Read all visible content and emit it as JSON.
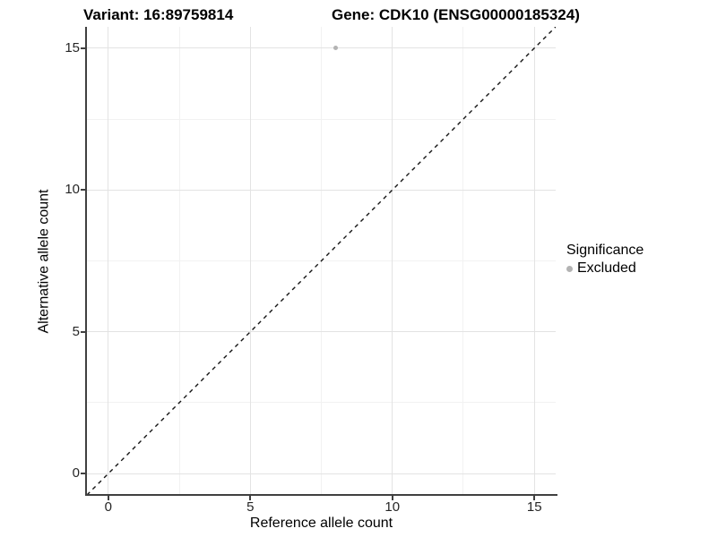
{
  "chart_data": {
    "type": "scatter",
    "title_left": "Variant: 16:89759814",
    "title_right": "Gene: CDK10 (ENSG00000185324)",
    "xlabel": "Reference allele count",
    "ylabel": "Alternative allele count",
    "xlim": [
      -0.75,
      15.75
    ],
    "ylim": [
      -0.75,
      15.75
    ],
    "x_major_ticks": [
      0,
      5,
      10,
      15
    ],
    "x_minor_ticks": [
      2.5,
      7.5,
      12.5
    ],
    "y_major_ticks": [
      0,
      5,
      10,
      15
    ],
    "y_minor_ticks": [
      2.5,
      7.5,
      12.5
    ],
    "grid": "major+minor gridlines on white panel",
    "legend_title": "Significance",
    "legend_position": "right",
    "series": [
      {
        "name": "Excluded",
        "color": "#b3b3b3",
        "marker": "circle",
        "marker_size_px": 5,
        "points": [
          {
            "x": 8,
            "y": 15
          }
        ]
      }
    ],
    "reference_line": {
      "type": "identity",
      "equation": "y = x",
      "style": "dashed",
      "color": "#141414"
    }
  },
  "style": {
    "axis_color": "#404040",
    "grid_major_color": "#e3e3e3",
    "grid_minor_color": "#f2f2f2",
    "tick_label_color": "#262626",
    "background": "#ffffff"
  }
}
